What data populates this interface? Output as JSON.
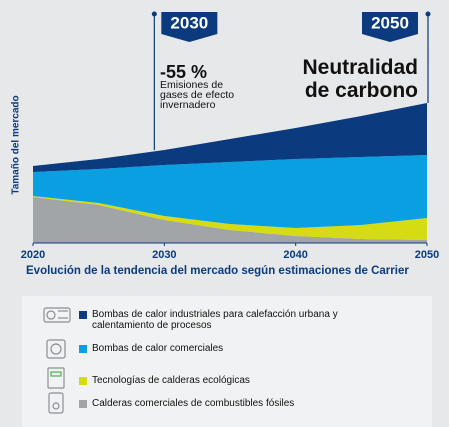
{
  "chart_data": {
    "type": "stacked_area",
    "xlabel": "Evolución de la tendencia del mercado según estimaciones de Carrier",
    "ylabel": "Tamaño del mercado",
    "x": [
      2020,
      2025,
      2030,
      2035,
      2040,
      2045,
      2050
    ],
    "xlim": [
      2020,
      2050
    ],
    "xticks": [
      2020,
      2030,
      2040,
      2050
    ],
    "ylim": [
      0,
      100
    ],
    "series": [
      {
        "name": "Bombas de calor industriales para calefacción urbana y calentamiento de procesos",
        "color": "#0b3a7e",
        "values": [
          3,
          5,
          7.5,
          11.5,
          15.5,
          20.5,
          26
        ]
      },
      {
        "name": "Bombas de calor comerciales",
        "color": "#0a9fe0",
        "values": [
          12,
          17,
          25.5,
          31,
          34.5,
          34,
          31.5
        ]
      },
      {
        "name": "Tecnologías de calderas ecológicas",
        "color": "#d6dc14",
        "values": [
          0.5,
          1,
          2,
          3,
          4,
          7,
          11
        ]
      },
      {
        "name": "Calderas comerciales de combustibles fósiles",
        "color": "#a2a5a8",
        "values": [
          23,
          19,
          11.5,
          6.5,
          3.5,
          2,
          1.5
        ]
      }
    ],
    "annotations": [
      {
        "x": 2030,
        "title": "-55 %",
        "text": "Emisiones de gases de efecto invernadero"
      },
      {
        "x": 2050,
        "text": "Neutralidad de carbono"
      }
    ]
  }
}
